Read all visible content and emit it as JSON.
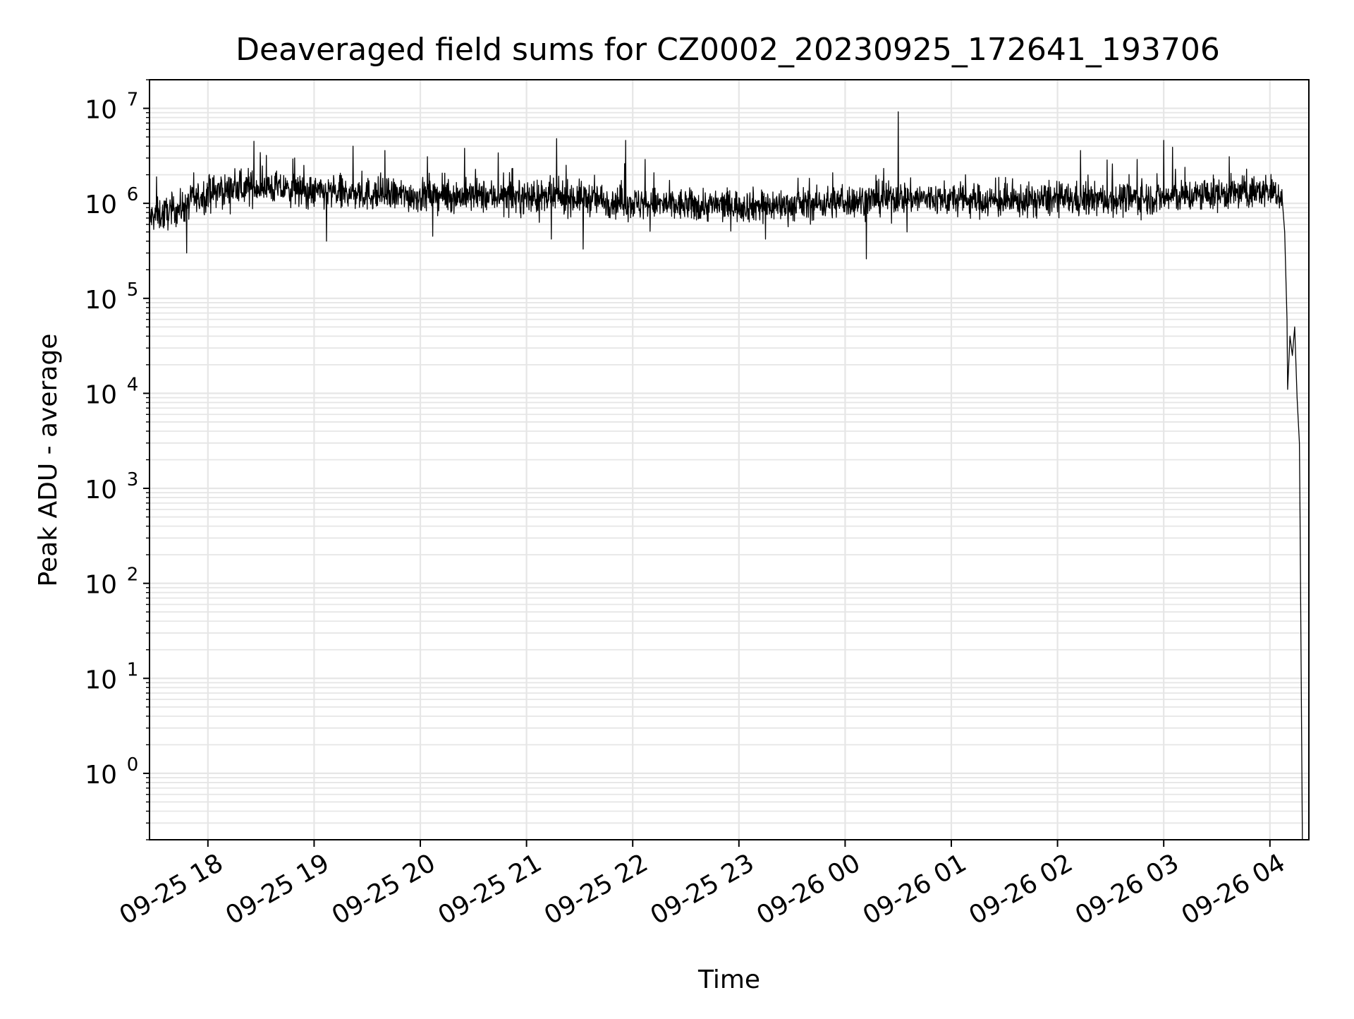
{
  "chart_data": {
    "type": "line",
    "title": "Deaveraged field sums for CZ0002_20230925_172641_193706",
    "xlabel": "Time",
    "ylabel": "Peak ADU - average",
    "yscale": "log",
    "grid": true,
    "legend": "none",
    "line_color": "#000000",
    "grid_color": "#e6e6e6",
    "x_tick_labels": [
      "09-25 18",
      "09-25 19",
      "09-25 20",
      "09-25 21",
      "09-25 22",
      "09-25 23",
      "09-26 00",
      "09-26 01",
      "09-26 02",
      "09-26 03",
      "09-26 04"
    ],
    "x_ticks": [
      "2023-09-25T18:00",
      "2023-09-25T19:00",
      "2023-09-25T20:00",
      "2023-09-25T21:00",
      "2023-09-25T22:00",
      "2023-09-25T23:00",
      "2023-09-26T00:00",
      "2023-09-26T01:00",
      "2023-09-26T02:00",
      "2023-09-26T03:00",
      "2023-09-26T04:00"
    ],
    "xlim": [
      "2023-09-25T17:27",
      "2023-09-26T04:22"
    ],
    "ylim": [
      0.2,
      20000000
    ],
    "y_tick_values": [
      1,
      10,
      100,
      1000,
      10000,
      100000,
      1000000,
      10000000
    ],
    "y_tick_labels": [
      {
        "base": "10",
        "exp": "0"
      },
      {
        "base": "10",
        "exp": "1"
      },
      {
        "base": "10",
        "exp": "2"
      },
      {
        "base": "10",
        "exp": "3"
      },
      {
        "base": "10",
        "exp": "4"
      },
      {
        "base": "10",
        "exp": "5"
      },
      {
        "base": "10",
        "exp": "6"
      },
      {
        "base": "10",
        "exp": "7"
      }
    ],
    "series": [
      {
        "baseline": [
          [
            "2023-09-25T17:27",
            700000
          ],
          [
            "2023-09-25T17:45",
            900000
          ],
          [
            "2023-09-25T18:00",
            1300000
          ],
          [
            "2023-09-25T18:30",
            1500000
          ],
          [
            "2023-09-25T19:00",
            1300000
          ],
          [
            "2023-09-25T19:30",
            1250000
          ],
          [
            "2023-09-25T20:00",
            1200000
          ],
          [
            "2023-09-25T20:30",
            1200000
          ],
          [
            "2023-09-25T21:00",
            1150000
          ],
          [
            "2023-09-25T21:30",
            1150000
          ],
          [
            "2023-09-25T22:00",
            1000000
          ],
          [
            "2023-09-25T22:30",
            950000
          ],
          [
            "2023-09-25T23:00",
            950000
          ],
          [
            "2023-09-25T23:30",
            950000
          ],
          [
            "2023-09-26T00:00",
            1050000
          ],
          [
            "2023-09-26T00:30",
            1150000
          ],
          [
            "2023-09-26T01:00",
            1100000
          ],
          [
            "2023-09-26T01:30",
            1050000
          ],
          [
            "2023-09-26T02:00",
            1100000
          ],
          [
            "2023-09-26T02:30",
            1100000
          ],
          [
            "2023-09-26T03:00",
            1150000
          ],
          [
            "2023-09-26T03:30",
            1250000
          ],
          [
            "2023-09-26T04:00",
            1350000
          ],
          [
            "2023-09-26T04:07",
            1200000
          ]
        ],
        "spikes": [
          [
            "2023-09-25T17:31",
            1900000
          ],
          [
            "2023-09-25T17:35",
            550000
          ],
          [
            "2023-09-25T17:48",
            300000
          ],
          [
            "2023-09-25T17:52",
            2100000
          ],
          [
            "2023-09-25T18:26",
            4500000
          ],
          [
            "2023-09-25T18:33",
            3200000
          ],
          [
            "2023-09-25T18:49",
            3000000
          ],
          [
            "2023-09-25T19:07",
            400000
          ],
          [
            "2023-09-25T19:22",
            4000000
          ],
          [
            "2023-09-25T19:40",
            3600000
          ],
          [
            "2023-09-25T20:04",
            3100000
          ],
          [
            "2023-09-25T20:07",
            450000
          ],
          [
            "2023-09-25T20:25",
            3800000
          ],
          [
            "2023-09-25T20:44",
            3400000
          ],
          [
            "2023-09-25T21:14",
            420000
          ],
          [
            "2023-09-25T21:17",
            4800000
          ],
          [
            "2023-09-25T21:32",
            330000
          ],
          [
            "2023-09-25T21:56",
            4600000
          ],
          [
            "2023-09-25T22:07",
            2900000
          ],
          [
            "2023-09-25T22:12",
            2100000
          ],
          [
            "2023-09-25T23:15",
            420000
          ],
          [
            "2023-09-25T23:53",
            2100000
          ],
          [
            "2023-09-26T00:12",
            260000
          ],
          [
            "2023-09-26T00:30",
            9200000
          ],
          [
            "2023-09-26T00:35",
            500000
          ],
          [
            "2023-09-26T01:08",
            2000000
          ],
          [
            "2023-09-26T02:13",
            3600000
          ],
          [
            "2023-09-26T02:31",
            2600000
          ],
          [
            "2023-09-26T02:45",
            2900000
          ],
          [
            "2023-09-26T03:00",
            4600000
          ],
          [
            "2023-09-26T03:05",
            3900000
          ],
          [
            "2023-09-26T03:37",
            3100000
          ]
        ],
        "tail": [
          [
            "2023-09-26T04:07",
            1200000
          ],
          [
            "2023-09-26T04:08",
            500000
          ],
          [
            "2023-09-26T04:09",
            60000
          ],
          [
            "2023-09-26T04:09",
            11000
          ],
          [
            "2023-09-26T04:10",
            40000
          ],
          [
            "2023-09-26T04:11",
            25000
          ],
          [
            "2023-09-26T04:12",
            50000
          ],
          [
            "2023-09-26T04:13",
            9000
          ],
          [
            "2023-09-26T04:14",
            3000
          ],
          [
            "2023-09-26T04:14",
            500
          ],
          [
            "2023-09-26T04:15",
            0.2
          ]
        ]
      }
    ]
  }
}
